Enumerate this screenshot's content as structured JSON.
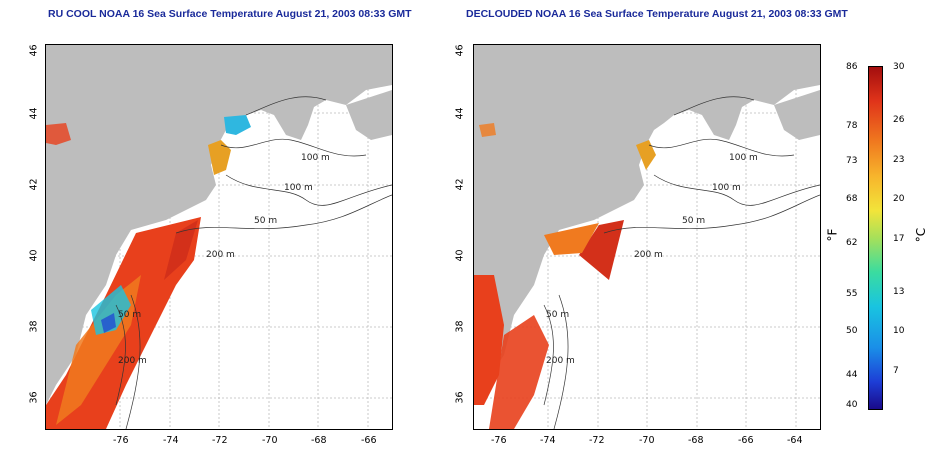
{
  "titles": {
    "left": "RU COOL NOAA 16 Sea Surface Temperature August 21, 2003 08:33 GMT",
    "right": "DECLOUDED NOAA 16 Sea Surface Temperature August 21, 2003 08:33 GMT"
  },
  "axes": {
    "lon_ticks": [
      "-76",
      "-74",
      "-72",
      "-70",
      "-68",
      "-66",
      "-64"
    ],
    "lat_ticks": [
      "46",
      "44",
      "42",
      "40",
      "38",
      "36"
    ],
    "lon_range": [
      -77,
      -63
    ],
    "lat_range": [
      35,
      46
    ]
  },
  "contour_labels": {
    "left": [
      "100 m",
      "100 m",
      "50 m",
      "200 m",
      "50 m",
      "200 m"
    ],
    "right": [
      "100 m",
      "100 m",
      "50 m",
      "200 m",
      "50 m",
      "200 m"
    ]
  },
  "colorbar": {
    "fahrenheit_ticks": [
      "86",
      "78",
      "73",
      "68",
      "62",
      "55",
      "50",
      "44",
      "40"
    ],
    "celsius_ticks": [
      "30",
      "26",
      "23",
      "20",
      "17",
      "13",
      "10",
      "7"
    ],
    "fahrenheit_unit": "°F",
    "celsius_unit": "°C",
    "range_c": [
      4,
      30
    ],
    "colors": [
      "#1a0a8a",
      "#1d3ed6",
      "#19c4e0",
      "#a6e05a",
      "#f2e43a",
      "#f07a1f",
      "#a30e0e"
    ]
  }
}
